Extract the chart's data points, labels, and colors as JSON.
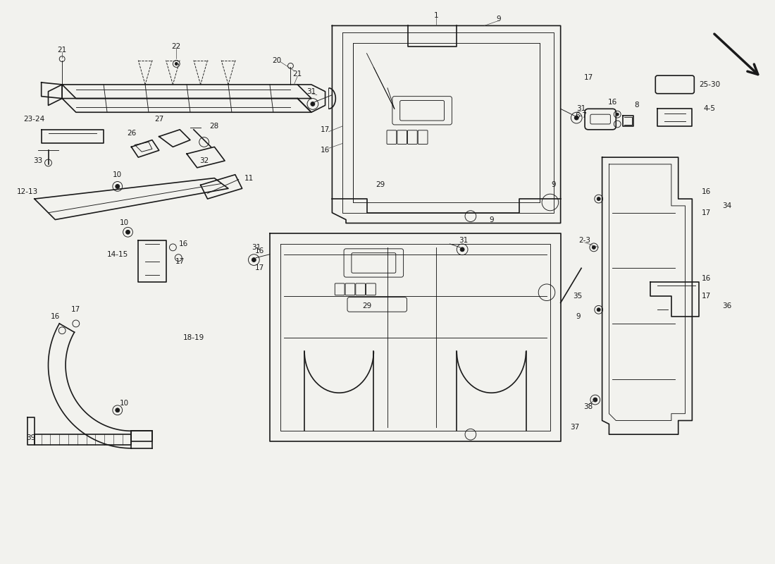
{
  "bg_color": "#f2f2ee",
  "line_color": "#1a1a1a",
  "lw_main": 1.2,
  "lw_thin": 0.65,
  "lw_thick": 1.8,
  "label_fs": 7.5,
  "fig_width": 11.0,
  "fig_height": 8.0,
  "dpi": 100
}
